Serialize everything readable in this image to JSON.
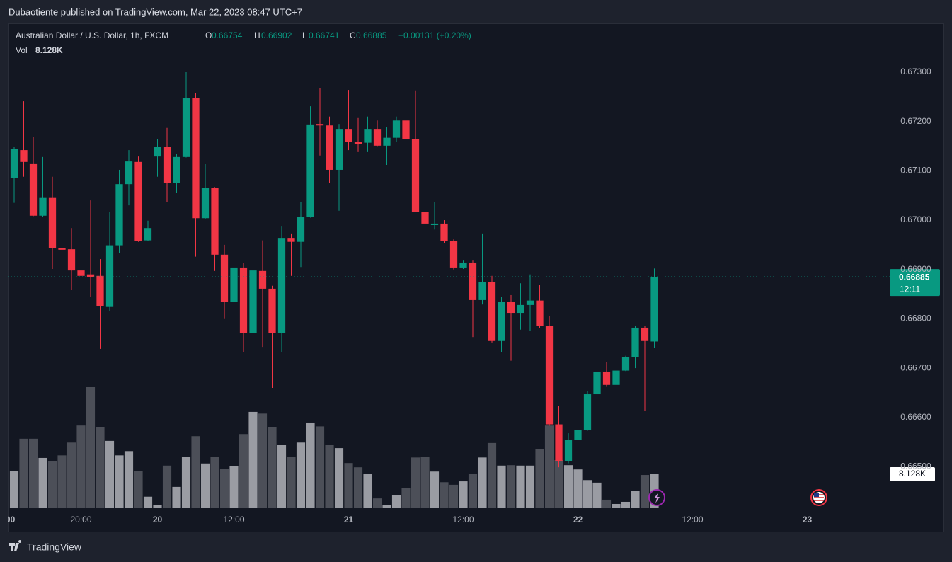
{
  "header": {
    "published": "Dubaotiente published on TradingView.com, Mar 22, 2023 08:47 UTC+7"
  },
  "footer": {
    "brand": "TradingView"
  },
  "chart_data": {
    "type": "candlestick",
    "legend": {
      "symbol": "Australian Dollar / U.S. Dollar, 1h, FXCM",
      "open_label": "O",
      "open": 0.66754,
      "high_label": "H",
      "high": 0.66902,
      "low_label": "L",
      "low": 0.66741,
      "close_label": "C",
      "close": 0.66885,
      "change": "+0.00131 (+0.20%)",
      "volume_label": "Vol",
      "volume": "8.128K"
    },
    "open": [
      0.67086,
      0.67142,
      0.67115,
      0.67009,
      0.67045,
      0.66943,
      0.66941,
      0.66898,
      0.6689,
      0.66887,
      0.66824,
      0.66949,
      0.67073,
      0.67118,
      0.66959,
      0.67129,
      0.67149,
      0.67076,
      0.67128,
      0.67248,
      0.67004,
      0.67066,
      0.6693,
      0.66835,
      0.66904,
      0.66771,
      0.66897,
      0.66861,
      0.66771,
      0.66964,
      0.66956,
      0.67006,
      0.67195,
      0.67192,
      0.67102,
      0.67185,
      0.67158,
      0.67157,
      0.67185,
      0.67151,
      0.67167,
      0.67202,
      0.67165,
      0.67017,
      0.6699,
      0.66993,
      0.66957,
      0.66904,
      0.66914,
      0.66838,
      0.66875,
      0.66755,
      0.66834,
      0.66812,
      0.66828,
      0.66837,
      0.66786,
      0.66586,
      0.66511,
      0.66554,
      0.66574,
      0.66647,
      0.66693,
      0.66666,
      0.66695,
      0.66723,
      0.66782,
      0.66754
    ],
    "high": [
      0.67148,
      0.67241,
      0.67169,
      0.67128,
      0.67088,
      0.66987,
      0.66984,
      0.66944,
      0.6704,
      0.66921,
      0.67016,
      0.67102,
      0.67142,
      0.67129,
      0.66999,
      0.67165,
      0.67187,
      0.67134,
      0.673,
      0.67258,
      0.67114,
      0.67067,
      0.6695,
      0.66923,
      0.66913,
      0.66901,
      0.66959,
      0.66867,
      0.66987,
      0.66973,
      0.67037,
      0.67231,
      0.67267,
      0.6721,
      0.67195,
      0.67264,
      0.67207,
      0.6721,
      0.67202,
      0.67188,
      0.6721,
      0.67214,
      0.67263,
      0.67037,
      0.67037,
      0.67,
      0.66961,
      0.66918,
      0.66918,
      0.66973,
      0.66887,
      0.66844,
      0.66848,
      0.66872,
      0.6689,
      0.66868,
      0.66805,
      0.66623,
      0.66568,
      0.66586,
      0.66653,
      0.6671,
      0.66712,
      0.66718,
      0.66725,
      0.66786,
      0.66785,
      0.66902
    ],
    "low": [
      0.67035,
      0.67088,
      0.67008,
      0.67007,
      0.66901,
      0.66887,
      0.66858,
      0.66815,
      0.66844,
      0.66739,
      0.66815,
      0.66934,
      0.6703,
      0.66956,
      0.66958,
      0.67088,
      0.67037,
      0.67056,
      0.67127,
      0.66926,
      0.67003,
      0.66897,
      0.66801,
      0.66825,
      0.66733,
      0.66687,
      0.66743,
      0.6666,
      0.66732,
      0.66887,
      0.66905,
      0.67005,
      0.67131,
      0.67076,
      0.67019,
      0.67142,
      0.67138,
      0.67138,
      0.6715,
      0.67112,
      0.67159,
      0.67096,
      0.67016,
      0.66901,
      0.66981,
      0.66953,
      0.669,
      0.66901,
      0.66763,
      0.66829,
      0.66752,
      0.66732,
      0.66715,
      0.66778,
      0.66776,
      0.66781,
      0.66583,
      0.66499,
      0.66507,
      0.66551,
      0.66573,
      0.66643,
      0.66662,
      0.66607,
      0.66694,
      0.667,
      0.66614,
      0.66741
    ],
    "close": [
      0.67144,
      0.67118,
      0.67009,
      0.67045,
      0.66943,
      0.6694,
      0.66898,
      0.66887,
      0.66885,
      0.66825,
      0.66949,
      0.67073,
      0.67119,
      0.66957,
      0.66984,
      0.67149,
      0.67076,
      0.67128,
      0.67248,
      0.67004,
      0.67066,
      0.6693,
      0.66835,
      0.66904,
      0.66771,
      0.66898,
      0.66861,
      0.66771,
      0.66964,
      0.66956,
      0.67006,
      0.67194,
      0.67192,
      0.67102,
      0.67185,
      0.67158,
      0.67155,
      0.67185,
      0.67151,
      0.67167,
      0.67202,
      0.67165,
      0.67017,
      0.66993,
      0.66993,
      0.66957,
      0.66904,
      0.66914,
      0.66838,
      0.66875,
      0.66755,
      0.66834,
      0.66812,
      0.66828,
      0.66837,
      0.66786,
      0.66586,
      0.66511,
      0.66554,
      0.66574,
      0.66647,
      0.66693,
      0.66666,
      0.66695,
      0.66723,
      0.66782,
      0.66755,
      0.66885
    ],
    "volume": [
      8.8,
      16.3,
      16.3,
      11.8,
      11.1,
      12.4,
      15.4,
      19.4,
      28.4,
      19.1,
      15.8,
      12.4,
      13.4,
      8.8,
      2.7,
      0.7,
      10.0,
      5.0,
      12.1,
      16.9,
      10.5,
      12.1,
      9.3,
      9.8,
      17.4,
      22.6,
      22.2,
      19.1,
      14.9,
      12.1,
      15.4,
      20.1,
      19.2,
      14.9,
      14.1,
      10.6,
      9.6,
      8.0,
      2.3,
      0.7,
      3.0,
      4.8,
      11.9,
      12.1,
      8.6,
      6.1,
      5.5,
      6.3,
      8.0,
      11.9,
      15.3,
      10.0,
      10.1,
      10.0,
      10.0,
      13.9,
      19.4,
      11.3,
      10.1,
      9.1,
      6.6,
      6.0,
      2.0,
      1.0,
      1.5,
      4.0,
      7.8,
      8.128
    ],
    "up_color": "#089981",
    "down_color": "#f23645",
    "volume_up_color": "#9a9ca3",
    "volume_down_color": "#4c4f58",
    "ylim": [
      0.66416,
      0.67399
    ],
    "yticks": [
      {
        "value": 0.673,
        "label": "0.67300"
      },
      {
        "value": 0.672,
        "label": "0.67200"
      },
      {
        "value": 0.671,
        "label": "0.67100"
      },
      {
        "value": 0.67,
        "label": "0.67000"
      },
      {
        "value": 0.669,
        "label": "0.66900"
      },
      {
        "value": 0.668,
        "label": "0.66800"
      },
      {
        "value": 0.667,
        "label": "0.66700"
      },
      {
        "value": 0.666,
        "label": "0.66600"
      },
      {
        "value": 0.665,
        "label": "0.66500"
      }
    ],
    "xlim": [
      -0.593,
      90.74
    ],
    "xticks": [
      {
        "value": -0.4,
        "label": "00"
      },
      {
        "value": 7,
        "label": "20:00"
      },
      {
        "value": 15,
        "label": "20"
      },
      {
        "value": 23,
        "label": "12:00"
      },
      {
        "value": 35,
        "label": "21"
      },
      {
        "value": 47,
        "label": "12:00"
      },
      {
        "value": 59,
        "label": "22"
      },
      {
        "value": 71,
        "label": "12:00"
      },
      {
        "value": 83,
        "label": "23"
      }
    ],
    "grid": true,
    "last_price_tag": {
      "value": 0.66885,
      "countdown": "12:11"
    },
    "volume_tag": "8.128K"
  }
}
